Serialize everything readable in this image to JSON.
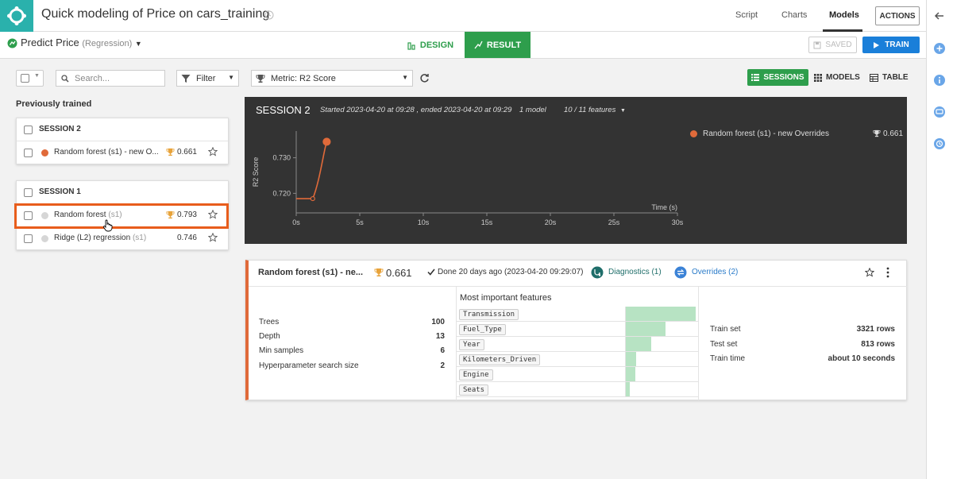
{
  "app": {
    "title": "Quick modeling of Price on cars_training",
    "nav": {
      "script": "Script",
      "charts": "Charts",
      "models": "Models"
    },
    "actions_label": "ACTIONS"
  },
  "subbar": {
    "name": "Predict Price",
    "type": "(Regression)",
    "design_tab": "DESIGN",
    "result_tab": "RESULT",
    "saved_label": "SAVED",
    "train_label": "TRAIN"
  },
  "toolbar": {
    "search_placeholder": "Search...",
    "filter_label": "Filter",
    "metric_label": "Metric: R2 Score",
    "views": {
      "sessions": "SESSIONS",
      "models": "MODELS",
      "table": "TABLE"
    }
  },
  "left": {
    "heading": "Previously trained",
    "sessions": [
      {
        "label": "SESSION 2",
        "models": [
          {
            "name": "Random forest (s1) - new O...",
            "suffix": "",
            "score": "0.661",
            "best": true,
            "color": "#e06a3a"
          }
        ]
      },
      {
        "label": "SESSION 1",
        "models": [
          {
            "name": "Random forest ",
            "suffix": "(s1)",
            "score": "0.793",
            "best": true,
            "color": "#d6d6d6"
          },
          {
            "name": "Ridge (L2) regression ",
            "suffix": "(s1)",
            "score": "0.746",
            "best": false,
            "color": "#d6d6d6"
          }
        ]
      }
    ]
  },
  "session": {
    "title": "SESSION 2",
    "meta": "Started 2023-04-20 at 09:28 , ended 2023-04-20 at 09:29",
    "models_count": "1 model",
    "features": "10 / 11 features",
    "legend": {
      "label": "Random forest (s1) - new Overrides",
      "score": "0.661",
      "color": "#e06a3a"
    }
  },
  "chart_data": {
    "type": "line",
    "ylabel": "R2 Score",
    "xlabel": "Time (s)",
    "x_ticks": [
      "0s",
      "5s",
      "10s",
      "15s",
      "20s",
      "25s",
      "30s"
    ],
    "y_ticks": [
      "0.720",
      "0.730"
    ],
    "xlim": [
      0,
      30
    ],
    "ylim": [
      0.7145,
      0.7375
    ],
    "series": [
      {
        "name": "Random forest (s1) - new Overrides",
        "color": "#e06a3a",
        "points": [
          {
            "x": 0,
            "y": 0.7185
          },
          {
            "x": 1.3,
            "y": 0.7185
          },
          {
            "x": 2.4,
            "y": 0.7345
          }
        ]
      }
    ]
  },
  "detail": {
    "title": "Random forest (s1) - ne...",
    "score": "0.661",
    "status": "Done 20 days ago (2023-04-20 09:29:07)",
    "diagnostics": "Diagnostics (1)",
    "overrides": "Overrides (2)",
    "params": [
      {
        "label": "Trees",
        "value": "100"
      },
      {
        "label": "Depth",
        "value": "13"
      },
      {
        "label": "Min samples",
        "value": "6"
      },
      {
        "label": "Hyperparameter search size",
        "value": "2"
      }
    ],
    "features_title": "Most important features",
    "features": [
      {
        "name": "Transmission",
        "importance": 0.88
      },
      {
        "name": "Fuel_Type",
        "importance": 0.5
      },
      {
        "name": "Year",
        "importance": 0.32
      },
      {
        "name": "Kilometers_Driven",
        "importance": 0.13
      },
      {
        "name": "Engine",
        "importance": 0.12
      },
      {
        "name": "Seats",
        "importance": 0.05
      }
    ],
    "stats": [
      {
        "label": "Train set",
        "value": "3321 rows"
      },
      {
        "label": "Test set",
        "value": "813 rows"
      },
      {
        "label": "Train time",
        "value": "about 10 seconds"
      }
    ]
  }
}
